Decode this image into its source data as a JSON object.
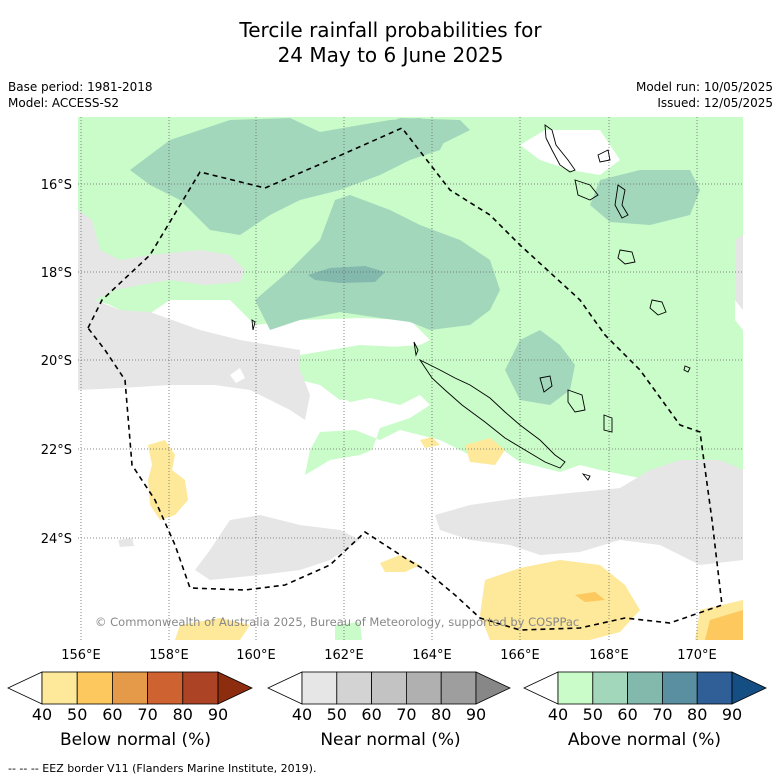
{
  "title": {
    "line1": "Tercile rainfall probabilities for",
    "line2": "24 May to 6 June 2025"
  },
  "meta_left": {
    "base_period": "Base period: 1981-2018",
    "model": "Model: ACCESS-S2"
  },
  "meta_right": {
    "model_run": "Model run: 10/05/2025",
    "issued": "Issued: 12/05/2025"
  },
  "map": {
    "lon_ticks": [
      "156°E",
      "158°E",
      "160°E",
      "162°E",
      "164°E",
      "166°E",
      "168°E",
      "170°E"
    ],
    "lat_ticks": [
      "16°S",
      "18°S",
      "20°S",
      "22°S",
      "24°S"
    ],
    "lon_range": [
      155.9,
      171.0
    ],
    "lat_range": [
      -26.2,
      -14.5
    ],
    "copyright": "© Commonwealth of Australia 2025, Bureau of Meteorology, supported by COSPPac"
  },
  "legends": [
    {
      "label": "Below normal (%)",
      "ticks": [
        "40",
        "50",
        "60",
        "70",
        "80",
        "90"
      ],
      "colors": [
        "#ffffff",
        "#fee89a",
        "#fdc85d",
        "#e59a4a",
        "#cf6231",
        "#ad4325",
        "#8c2d10"
      ]
    },
    {
      "label": "Near normal (%)",
      "ticks": [
        "40",
        "50",
        "60",
        "70",
        "80",
        "90"
      ],
      "colors": [
        "#ffffff",
        "#e6e6e6",
        "#d3d3d3",
        "#c3c3c3",
        "#b0b0b0",
        "#9e9e9e",
        "#878787"
      ]
    },
    {
      "label": "Above normal (%)",
      "ticks": [
        "40",
        "50",
        "60",
        "70",
        "80",
        "90"
      ],
      "colors": [
        "#ffffff",
        "#c9fcc9",
        "#a2d7bc",
        "#83b8ad",
        "#5a8fa1",
        "#2f5f96",
        "#144e82"
      ]
    }
  ],
  "footnote": "--  --  -- EEZ border V11 (Flanders Marine Institute, 2019)."
}
